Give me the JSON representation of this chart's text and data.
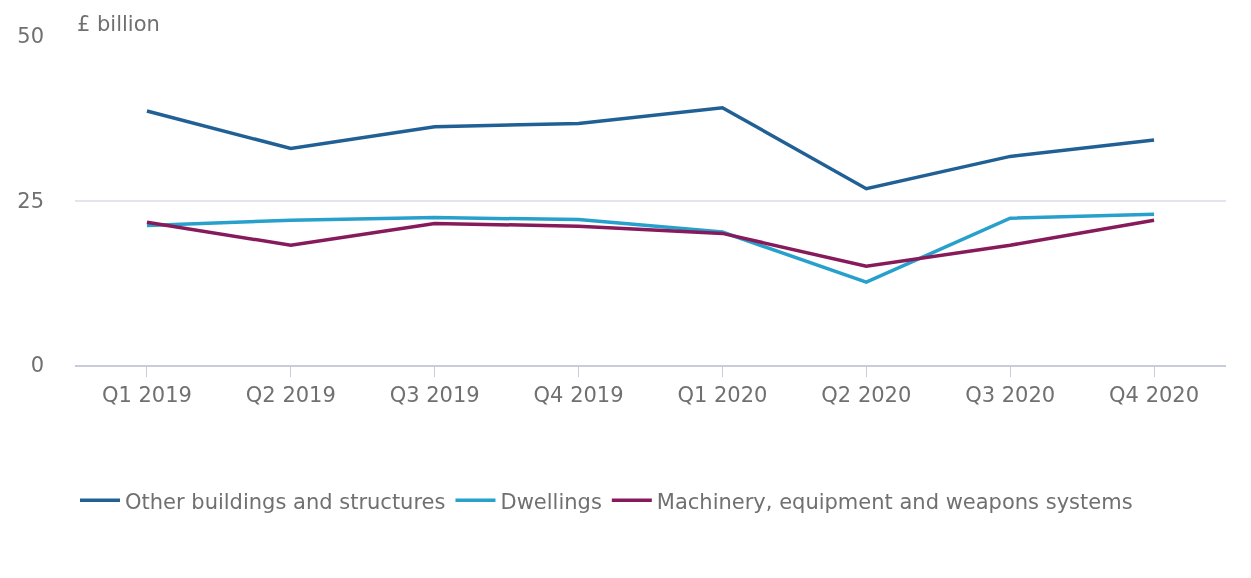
{
  "chart_data": {
    "type": "line",
    "ylabel": "£ billion",
    "categories": [
      "Q1 2019",
      "Q2 2019",
      "Q3 2019",
      "Q4 2019",
      "Q1 2020",
      "Q2 2020",
      "Q3 2020",
      "Q4 2020"
    ],
    "series": [
      {
        "name": "Other buildings and structures",
        "color": "#206095",
        "values": [
          38.6,
          32.9,
          36.2,
          36.7,
          39.1,
          26.8,
          31.7,
          34.2
        ]
      },
      {
        "name": "Dwellings",
        "color": "#27a0cc",
        "values": [
          21.2,
          22.0,
          22.4,
          22.1,
          20.2,
          12.6,
          22.3,
          22.9
        ]
      },
      {
        "name": "Machinery, equipment and weapons systems",
        "color": "#871a5b",
        "values": [
          21.7,
          18.2,
          21.5,
          21.1,
          20.0,
          15.0,
          18.2,
          22.0
        ]
      }
    ],
    "ylim": [
      0,
      50
    ],
    "yticks": [
      0,
      25,
      50
    ],
    "grid": "y",
    "legend": "bottom",
    "marker": "none",
    "line_style": "solid"
  }
}
